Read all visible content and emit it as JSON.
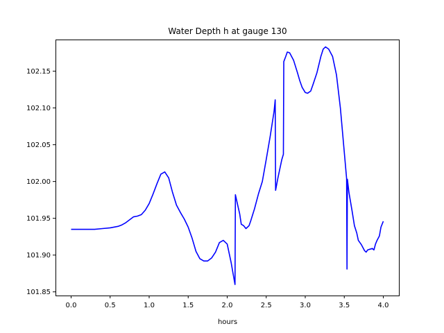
{
  "chart_data": {
    "type": "line",
    "title": "Water Depth h at gauge 130",
    "xlabel": "hours",
    "ylabel": "",
    "xlim": [
      -0.2,
      4.2
    ],
    "ylim": [
      101.845,
      102.193
    ],
    "grid": false,
    "x_ticks": [
      0.0,
      0.5,
      1.0,
      1.5,
      2.0,
      2.5,
      3.0,
      3.5,
      4.0
    ],
    "x_tick_labels": [
      "0.0",
      "0.5",
      "1.0",
      "1.5",
      "2.0",
      "2.5",
      "3.0",
      "3.5",
      "4.0"
    ],
    "y_ticks": [
      101.85,
      101.9,
      101.95,
      102.0,
      102.05,
      102.1,
      102.15
    ],
    "y_tick_labels": [
      "101.85",
      "101.90",
      "101.95",
      "102.00",
      "102.05",
      "102.10",
      "102.15"
    ],
    "series": [
      {
        "color": "#0000ff",
        "points": [
          [
            0.0,
            101.935
          ],
          [
            0.1,
            101.935
          ],
          [
            0.2,
            101.935
          ],
          [
            0.3,
            101.935
          ],
          [
            0.4,
            101.936
          ],
          [
            0.5,
            101.937
          ],
          [
            0.6,
            101.939
          ],
          [
            0.65,
            101.941
          ],
          [
            0.7,
            101.944
          ],
          [
            0.75,
            101.948
          ],
          [
            0.8,
            101.952
          ],
          [
            0.85,
            101.953
          ],
          [
            0.9,
            101.955
          ],
          [
            0.95,
            101.961
          ],
          [
            1.0,
            101.97
          ],
          [
            1.05,
            101.983
          ],
          [
            1.1,
            101.997
          ],
          [
            1.15,
            102.01
          ],
          [
            1.2,
            102.013
          ],
          [
            1.25,
            102.005
          ],
          [
            1.3,
            101.985
          ],
          [
            1.35,
            101.968
          ],
          [
            1.4,
            101.958
          ],
          [
            1.45,
            101.949
          ],
          [
            1.5,
            101.938
          ],
          [
            1.55,
            101.923
          ],
          [
            1.6,
            101.905
          ],
          [
            1.65,
            101.895
          ],
          [
            1.7,
            101.892
          ],
          [
            1.75,
            101.892
          ],
          [
            1.8,
            101.896
          ],
          [
            1.85,
            101.904
          ],
          [
            1.9,
            101.917
          ],
          [
            1.95,
            101.92
          ],
          [
            2.0,
            101.915
          ],
          [
            2.05,
            101.89
          ],
          [
            2.1,
            101.86
          ],
          [
            2.105,
            101.982
          ],
          [
            2.13,
            101.97
          ],
          [
            2.16,
            101.956
          ],
          [
            2.18,
            101.942
          ],
          [
            2.21,
            101.94
          ],
          [
            2.24,
            101.936
          ],
          [
            2.28,
            101.94
          ],
          [
            2.3,
            101.946
          ],
          [
            2.35,
            101.963
          ],
          [
            2.4,
            101.983
          ],
          [
            2.45,
            102.0
          ],
          [
            2.5,
            102.03
          ],
          [
            2.55,
            102.061
          ],
          [
            2.6,
            102.095
          ],
          [
            2.615,
            102.111
          ],
          [
            2.62,
            101.988
          ],
          [
            2.65,
            102.005
          ],
          [
            2.7,
            102.03
          ],
          [
            2.72,
            102.037
          ],
          [
            2.725,
            102.163
          ],
          [
            2.75,
            102.17
          ],
          [
            2.77,
            102.176
          ],
          [
            2.8,
            102.175
          ],
          [
            2.85,
            102.165
          ],
          [
            2.9,
            102.148
          ],
          [
            2.93,
            102.137
          ],
          [
            2.96,
            102.128
          ],
          [
            3.0,
            102.121
          ],
          [
            3.03,
            102.12
          ],
          [
            3.07,
            102.123
          ],
          [
            3.1,
            102.132
          ],
          [
            3.15,
            102.148
          ],
          [
            3.2,
            102.17
          ],
          [
            3.23,
            102.18
          ],
          [
            3.26,
            102.183
          ],
          [
            3.3,
            102.18
          ],
          [
            3.35,
            102.17
          ],
          [
            3.4,
            102.145
          ],
          [
            3.45,
            102.1
          ],
          [
            3.5,
            102.04
          ],
          [
            3.53,
            102.004
          ],
          [
            3.535,
            101.881
          ],
          [
            3.54,
            102.003
          ],
          [
            3.56,
            101.985
          ],
          [
            3.6,
            101.96
          ],
          [
            3.63,
            101.94
          ],
          [
            3.66,
            101.93
          ],
          [
            3.68,
            101.92
          ],
          [
            3.72,
            101.914
          ],
          [
            3.76,
            101.906
          ],
          [
            3.78,
            101.904
          ],
          [
            3.8,
            101.907
          ],
          [
            3.83,
            101.908
          ],
          [
            3.86,
            101.909
          ],
          [
            3.88,
            101.907
          ],
          [
            3.9,
            101.915
          ],
          [
            3.92,
            101.92
          ],
          [
            3.95,
            101.926
          ],
          [
            3.97,
            101.938
          ],
          [
            4.0,
            101.946
          ]
        ]
      }
    ]
  }
}
